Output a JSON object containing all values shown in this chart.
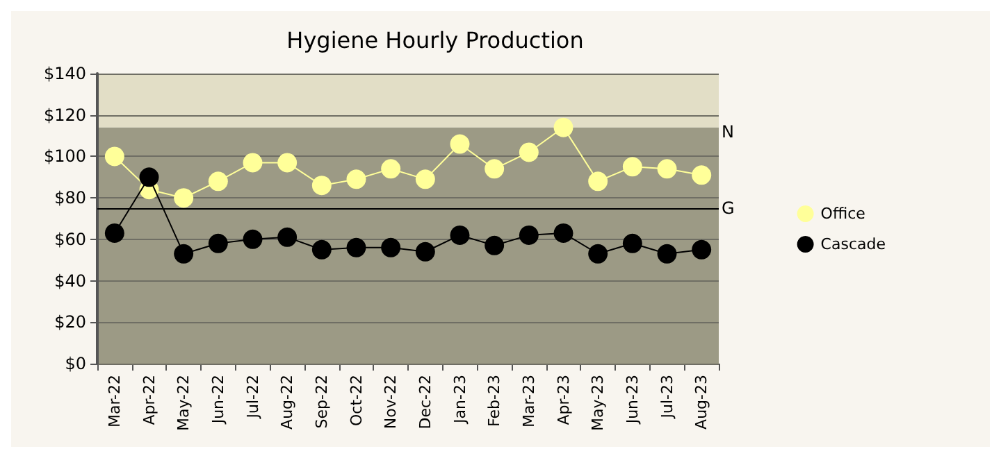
{
  "chart_data": {
    "type": "line",
    "title": "Hygiene Hourly Production",
    "categories": [
      "Mar-22",
      "Apr-22",
      "May-22",
      "Jun-22",
      "Jul-22",
      "Aug-22",
      "Sep-22",
      "Oct-22",
      "Nov-22",
      "Dec-22",
      "Jan-23",
      "Feb-23",
      "Mar-23",
      "Apr-23",
      "May-23",
      "Jun-23",
      "Jul-23",
      "Aug-23"
    ],
    "series": [
      {
        "name": "Office",
        "color": "#ffff99",
        "values": [
          100,
          84,
          80,
          88,
          97,
          97,
          86,
          89,
          94,
          89,
          106,
          94,
          102,
          114,
          88,
          95,
          94,
          91
        ]
      },
      {
        "name": "Cascade",
        "color": "#000000",
        "values": [
          63,
          90,
          53,
          58,
          60,
          61,
          55,
          56,
          56,
          54,
          62,
          57,
          62,
          63,
          53,
          58,
          53,
          55
        ]
      }
    ],
    "ylim": [
      0,
      140
    ],
    "yticks": [
      {
        "value": 0,
        "label": "$0"
      },
      {
        "value": 20,
        "label": "$20"
      },
      {
        "value": 40,
        "label": "$40"
      },
      {
        "value": 60,
        "label": "$60"
      },
      {
        "value": 80,
        "label": "$80"
      },
      {
        "value": 100,
        "label": "$100"
      },
      {
        "value": 120,
        "label": "$120"
      },
      {
        "value": 140,
        "label": "$140"
      }
    ],
    "bands": [
      {
        "axis": "y",
        "from": 114,
        "to": 140,
        "color": "#e2dec6"
      },
      {
        "axis": "y",
        "from": 0,
        "to": 114,
        "color": "#9c9a85",
        "label": "N"
      }
    ],
    "ref_lines": [
      {
        "axis": "y",
        "value": 75,
        "label": "G",
        "color": "#000000",
        "line_style": "solid"
      }
    ],
    "grid": "y",
    "legend": "right",
    "marker": "circle",
    "line_style": "solid"
  }
}
